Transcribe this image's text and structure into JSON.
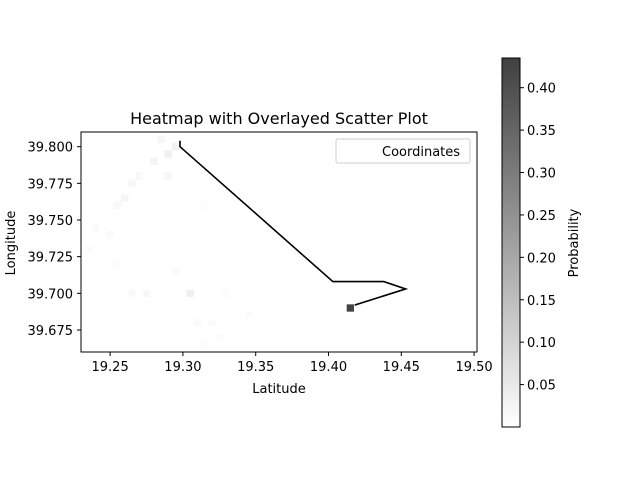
{
  "chart_data": {
    "type": "heatmap",
    "title": "Heatmap with Overlayed Scatter Plot",
    "xlabel": "Latitude",
    "ylabel": "Longitude",
    "xlim": [
      19.23,
      19.502
    ],
    "ylim": [
      39.66,
      39.81
    ],
    "xticks": [
      19.25,
      19.3,
      19.35,
      19.4,
      19.45,
      19.5
    ],
    "xtick_labels": [
      "19.25",
      "19.30",
      "19.35",
      "19.40",
      "19.45",
      "19.50"
    ],
    "yticks": [
      39.675,
      39.7,
      39.725,
      39.75,
      39.775,
      39.8
    ],
    "ytick_labels": [
      "39.675",
      "39.700",
      "39.725",
      "39.750",
      "39.775",
      "39.800"
    ],
    "legend": {
      "label": "Coordinates",
      "position": "top-right"
    },
    "colorbar": {
      "label": "Probability",
      "min": 0.0,
      "max": 0.435,
      "ticks": [
        0.05,
        0.1,
        0.15,
        0.2,
        0.25,
        0.3,
        0.35,
        0.4
      ],
      "tick_labels": [
        "0.05",
        "0.10",
        "0.15",
        "0.20",
        "0.25",
        "0.30",
        "0.35",
        "0.40"
      ],
      "colormap": "Greys"
    },
    "heatmap_cells": {
      "cell_size": [
        0.005,
        0.005
      ],
      "cells": [
        {
          "x": 19.415,
          "y": 39.69,
          "p": 0.43
        },
        {
          "x": 19.295,
          "y": 39.8,
          "p": 0.03
        },
        {
          "x": 19.29,
          "y": 39.795,
          "p": 0.035
        },
        {
          "x": 19.28,
          "y": 39.79,
          "p": 0.025
        },
        {
          "x": 19.285,
          "y": 39.805,
          "p": 0.02
        },
        {
          "x": 19.29,
          "y": 39.78,
          "p": 0.02
        },
        {
          "x": 19.27,
          "y": 39.78,
          "p": 0.015
        },
        {
          "x": 19.265,
          "y": 39.775,
          "p": 0.015
        },
        {
          "x": 19.26,
          "y": 39.765,
          "p": 0.02
        },
        {
          "x": 19.255,
          "y": 39.76,
          "p": 0.015
        },
        {
          "x": 19.25,
          "y": 39.74,
          "p": 0.012
        },
        {
          "x": 19.24,
          "y": 39.745,
          "p": 0.012
        },
        {
          "x": 19.235,
          "y": 39.73,
          "p": 0.01
        },
        {
          "x": 19.255,
          "y": 39.72,
          "p": 0.01
        },
        {
          "x": 19.265,
          "y": 39.7,
          "p": 0.012
        },
        {
          "x": 19.275,
          "y": 39.7,
          "p": 0.015
        },
        {
          "x": 19.305,
          "y": 39.7,
          "p": 0.035
        },
        {
          "x": 19.295,
          "y": 39.715,
          "p": 0.012
        },
        {
          "x": 19.31,
          "y": 39.68,
          "p": 0.012
        },
        {
          "x": 19.32,
          "y": 39.68,
          "p": 0.01
        },
        {
          "x": 19.325,
          "y": 39.67,
          "p": 0.008
        },
        {
          "x": 19.315,
          "y": 39.665,
          "p": 0.008
        },
        {
          "x": 19.345,
          "y": 39.685,
          "p": 0.008
        },
        {
          "x": 19.33,
          "y": 39.7,
          "p": 0.006
        },
        {
          "x": 19.315,
          "y": 39.76,
          "p": 0.006
        }
      ]
    },
    "path": {
      "x": [
        19.298,
        19.298,
        19.403,
        19.438,
        19.453,
        19.418
      ],
      "y": [
        39.804,
        39.8,
        39.708,
        39.708,
        39.703,
        39.692
      ],
      "color": "#000000"
    }
  }
}
